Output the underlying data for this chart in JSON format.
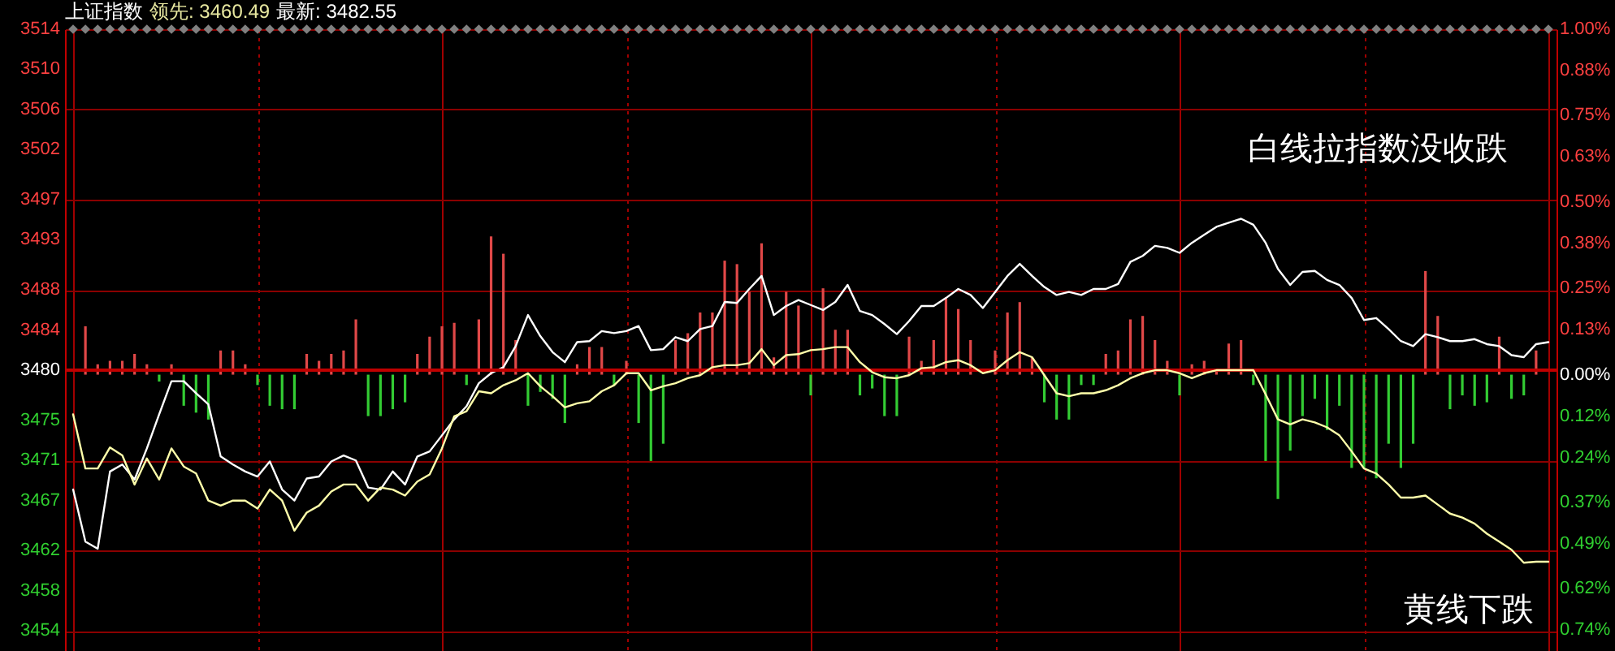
{
  "chart_data": {
    "type": "line",
    "title": "上证指数",
    "annotations": [
      "领先: 3460.49",
      "最新: 3482.55",
      "白线拉指数没收跌",
      "黄线下跌"
    ],
    "categories": [
      null,
      null,
      null,
      null,
      null,
      null,
      null,
      null,
      null,
      null,
      null,
      null,
      null,
      null,
      null,
      null,
      null,
      null,
      null,
      null,
      null,
      null,
      null,
      null,
      null,
      null,
      null,
      null,
      null,
      null,
      null,
      null,
      null,
      null,
      null,
      null,
      null,
      null,
      null,
      null,
      null,
      null,
      null,
      null,
      null,
      null,
      null,
      null,
      null,
      null,
      null,
      null,
      null,
      null,
      null,
      null,
      null,
      null,
      null,
      null,
      null,
      null,
      null,
      null,
      null,
      null,
      null,
      null,
      null,
      null,
      null,
      null,
      null,
      null,
      null,
      null,
      null,
      null,
      null,
      null,
      null,
      null,
      null,
      null,
      null,
      null,
      null,
      null,
      null,
      null,
      null,
      null,
      null,
      null,
      null,
      null,
      null,
      null,
      null,
      null,
      null,
      null,
      null,
      null,
      null,
      null,
      null,
      null,
      null,
      null,
      null,
      null,
      null,
      null,
      null,
      null,
      null,
      null,
      null,
      null,
      null
    ],
    "series": [
      {
        "type": "bar",
        "axis": "y2",
        "color": "#e04848",
        "values": [
          null,
          0.14,
          0.03,
          0.04,
          0.04,
          0.06,
          0.03,
          null,
          0.03,
          null,
          null,
          null,
          0.07,
          0.07,
          0.03,
          null,
          null,
          null,
          null,
          0.06,
          0.04,
          0.06,
          0.07,
          0.16,
          null,
          null,
          null,
          null,
          0.06,
          0.11,
          0.14,
          0.15,
          null,
          0.16,
          0.4,
          0.35,
          0.1,
          null,
          null,
          null,
          null,
          0.03,
          0.08,
          0.08,
          null,
          0.04,
          null,
          null,
          null,
          0.1,
          0.12,
          0.18,
          0.18,
          0.33,
          0.32,
          0.24,
          0.38,
          0.05,
          0.24,
          0.2,
          null,
          0.25,
          0.13,
          0.13,
          null,
          null,
          null,
          null,
          0.11,
          0.04,
          0.1,
          0.22,
          0.19,
          0.1,
          null,
          0.07,
          0.18,
          0.21,
          0.05,
          null,
          null,
          null,
          null,
          null,
          0.06,
          0.07,
          0.16,
          0.17,
          0.1,
          0.04,
          null,
          0.03,
          0.04,
          0.01,
          0.09,
          0.1,
          null,
          null,
          null,
          null,
          null,
          null,
          null,
          null,
          null,
          null,
          null,
          null,
          null,
          null,
          0.3,
          0.17,
          null,
          null,
          null,
          null,
          0.11,
          null,
          null,
          0.07,
          null
        ]
      },
      {
        "type": "bar",
        "axis": "y2",
        "color": "#33cc33",
        "values": [
          null,
          null,
          null,
          null,
          null,
          null,
          null,
          -0.02,
          null,
          -0.09,
          -0.11,
          -0.13,
          null,
          null,
          null,
          -0.03,
          -0.09,
          -0.1,
          -0.1,
          null,
          null,
          null,
          null,
          null,
          -0.12,
          -0.12,
          -0.1,
          -0.08,
          null,
          null,
          null,
          null,
          -0.03,
          null,
          null,
          null,
          null,
          -0.09,
          -0.05,
          -0.07,
          -0.14,
          null,
          null,
          null,
          -0.03,
          null,
          -0.14,
          -0.25,
          -0.2,
          null,
          null,
          null,
          null,
          null,
          null,
          null,
          null,
          null,
          null,
          null,
          -0.06,
          null,
          null,
          null,
          -0.06,
          -0.04,
          -0.12,
          -0.12,
          null,
          null,
          null,
          null,
          null,
          null,
          null,
          null,
          null,
          null,
          null,
          -0.08,
          -0.13,
          -0.13,
          -0.03,
          -0.03,
          null,
          null,
          null,
          null,
          null,
          null,
          -0.06,
          null,
          null,
          null,
          null,
          null,
          -0.03,
          -0.25,
          -0.36,
          -0.22,
          -0.12,
          -0.07,
          -0.16,
          -0.09,
          -0.27,
          -0.27,
          -0.3,
          -0.2,
          -0.27,
          -0.2,
          null,
          null,
          -0.1,
          -0.06,
          -0.09,
          -0.08,
          null,
          -0.07,
          -0.06,
          null,
          null
        ]
      },
      {
        "color": "#ffffff",
        "values": [
          3468.1,
          3462.9,
          3462.2,
          3469.9,
          3470.6,
          3469.1,
          3472.2,
          3475.6,
          3478.9,
          3478.9,
          3477.7,
          3476.6,
          3471.4,
          3470.6,
          3469.9,
          3469.4,
          3470.9,
          3468.1,
          3467.0,
          3469.2,
          3469.4,
          3470.9,
          3471.5,
          3471.0,
          3468.3,
          3468.1,
          3469.9,
          3468.6,
          3471.4,
          3471.9,
          3473.5,
          3475.1,
          3476.4,
          3478.7,
          3479.7,
          3480.3,
          3482.4,
          3485.5,
          3483.4,
          3481.8,
          3480.8,
          3482.8,
          3482.9,
          3483.9,
          3483.7,
          3483.9,
          3484.4,
          3482.0,
          3482.1,
          3483.3,
          3482.9,
          3484.1,
          3484.4,
          3486.8,
          3486.7,
          3488.1,
          3489.4,
          3485.5,
          3486.4,
          3487.0,
          3486.5,
          3486.0,
          3486.8,
          3488.5,
          3485.9,
          3485.5,
          3484.6,
          3483.6,
          3484.9,
          3486.4,
          3486.4,
          3487.2,
          3488.1,
          3487.5,
          3486.2,
          3487.8,
          3489.4,
          3490.6,
          3489.4,
          3488.3,
          3487.5,
          3487.8,
          3487.5,
          3488.1,
          3488.1,
          3488.6,
          3490.8,
          3491.4,
          3492.4,
          3492.2,
          3491.7,
          3492.7,
          3493.5,
          3494.3,
          3494.7,
          3495.1,
          3494.5,
          3492.7,
          3490.1,
          3488.5,
          3489.8,
          3489.9,
          3489.0,
          3488.5,
          3487.2,
          3485.0,
          3485.2,
          3484.1,
          3482.9,
          3482.4,
          3483.6,
          3483.3,
          3482.9,
          3482.9,
          3483.1,
          3482.6,
          3482.4,
          3481.5,
          3481.3,
          3482.6,
          3482.8
        ]
      },
      {
        "color": "#ffffaa",
        "values": [
          3475.6,
          3470.2,
          3470.2,
          3472.3,
          3471.5,
          3468.6,
          3471.2,
          3469.1,
          3472.2,
          3470.4,
          3469.7,
          3467.0,
          3466.5,
          3467.0,
          3467.0,
          3466.2,
          3468.1,
          3467.0,
          3464.0,
          3465.8,
          3466.5,
          3467.9,
          3468.6,
          3468.6,
          3467.0,
          3468.3,
          3468.1,
          3467.5,
          3468.9,
          3469.6,
          3472.2,
          3475.4,
          3475.9,
          3477.9,
          3477.7,
          3478.5,
          3479.0,
          3479.7,
          3478.4,
          3477.4,
          3476.3,
          3476.7,
          3476.9,
          3477.9,
          3478.5,
          3479.7,
          3479.7,
          3478.0,
          3478.4,
          3478.7,
          3479.2,
          3479.5,
          3480.3,
          3480.5,
          3480.5,
          3480.7,
          3482.1,
          3480.5,
          3481.5,
          3481.6,
          3482.0,
          3482.1,
          3482.3,
          3482.3,
          3480.8,
          3479.8,
          3479.3,
          3479.2,
          3479.5,
          3480.2,
          3480.3,
          3480.8,
          3481.0,
          3480.5,
          3479.7,
          3480.0,
          3481.0,
          3481.8,
          3481.3,
          3479.5,
          3477.7,
          3477.4,
          3477.7,
          3477.7,
          3478.0,
          3478.5,
          3479.2,
          3479.7,
          3480.0,
          3480.0,
          3479.7,
          3479.2,
          3479.7,
          3480.0,
          3480.0,
          3480.0,
          3480.0,
          3477.6,
          3475.1,
          3474.6,
          3475.1,
          3474.8,
          3474.3,
          3473.5,
          3471.9,
          3470.2,
          3469.7,
          3468.6,
          3467.3,
          3467.3,
          3467.5,
          3466.6,
          3465.7,
          3465.3,
          3464.7,
          3463.7,
          3462.9,
          3462.1,
          3460.8,
          3460.9,
          3460.9
        ]
      },
      {
        "type": "scatter",
        "marker": "diamond",
        "color": "#808080",
        "values": [
          3514,
          3514,
          3514,
          3514,
          3514,
          3514,
          3514,
          3514,
          3514,
          3514,
          3514,
          3514,
          3514,
          3514,
          3514,
          3514,
          3514,
          3514,
          3514,
          3514,
          3514,
          3514,
          3514,
          3514,
          3514,
          3514,
          3514,
          3514,
          3514,
          3514,
          3514,
          3514,
          3514,
          3514,
          3514,
          3514,
          3514,
          3514,
          3514,
          3514,
          3514,
          3514,
          3514,
          3514,
          3514,
          3514,
          3514,
          3514,
          3514,
          3514,
          3514,
          3514,
          3514,
          3514,
          3514,
          3514,
          3514,
          3514,
          3514,
          3514,
          3514,
          3514,
          3514,
          3514,
          3514,
          3514,
          3514,
          3514,
          3514,
          3514,
          3514,
          3514,
          3514,
          3514,
          3514,
          3514,
          3514,
          3514,
          3514,
          3514,
          3514,
          3514,
          3514,
          3514,
          3514,
          3514,
          3514,
          3514,
          3514,
          3514,
          3514,
          3514,
          3514,
          3514,
          3514,
          3514,
          3514,
          3514,
          3514,
          3514,
          3514,
          3514,
          3514,
          3514,
          3514,
          3514,
          3514,
          3514,
          3514,
          3514,
          3514,
          3514,
          3514,
          3514,
          3514,
          3514,
          3514,
          3514,
          3514,
          3514,
          3514
        ]
      }
    ],
    "ylim": [
      3452,
      3514
    ],
    "yticks": [
      3514,
      3510,
      3506,
      3502,
      3497,
      3493,
      3488,
      3484,
      3480,
      3475,
      3471,
      3467,
      3462,
      3458,
      3454
    ],
    "y2lim": [
      -0.8,
      1.0
    ],
    "y2ticks": [
      {
        "value": 1.0,
        "label": "1.00%"
      },
      {
        "value": 0.88,
        "label": "0.88%"
      },
      {
        "value": 0.75,
        "label": "0.75%"
      },
      {
        "value": 0.63,
        "label": "0.63%"
      },
      {
        "value": 0.5,
        "label": "0.50%"
      },
      {
        "value": 0.38,
        "label": "0.38%"
      },
      {
        "value": 0.25,
        "label": "0.25%"
      },
      {
        "value": 0.13,
        "label": "0.13%"
      },
      {
        "value": 0,
        "label": "0.00%"
      },
      {
        "value": -0.12,
        "label": "0.12%"
      },
      {
        "value": -0.24,
        "label": "0.24%"
      },
      {
        "value": -0.37,
        "label": "0.37%"
      },
      {
        "value": -0.49,
        "label": "0.49%"
      },
      {
        "value": -0.62,
        "label": "0.62%"
      },
      {
        "value": -0.74,
        "label": "0.74%"
      }
    ],
    "ref_lines": [
      {
        "axis": "y",
        "value": 3480,
        "color": "#c00000"
      }
    ],
    "grid": true
  }
}
